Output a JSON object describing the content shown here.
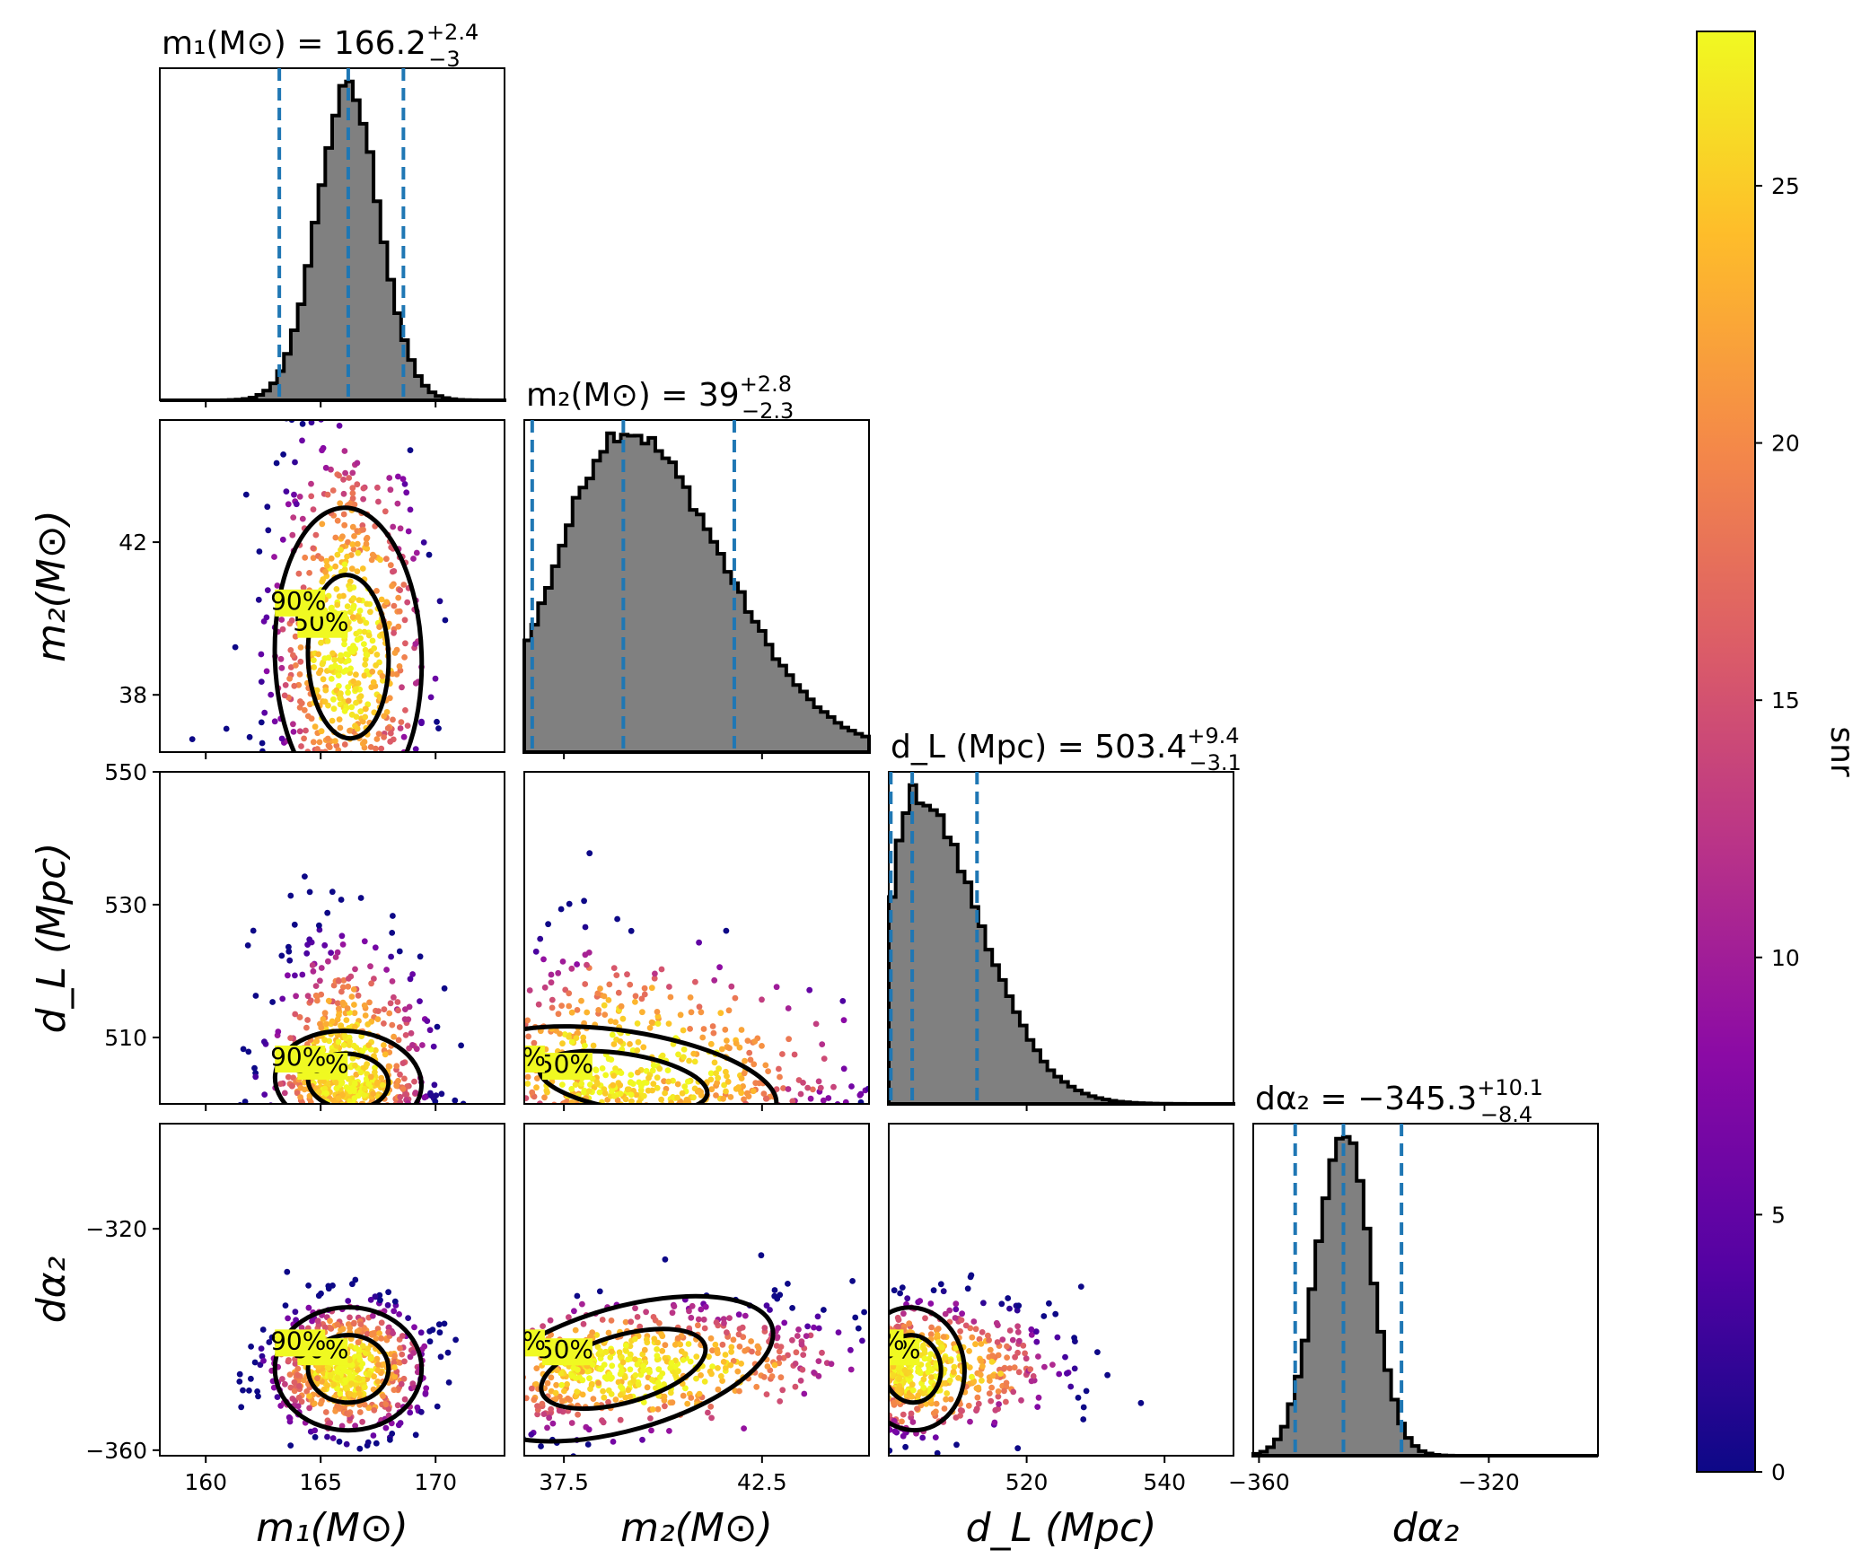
{
  "chart_data": {
    "type": "scatter",
    "subtype": "corner plot (1D histograms on diagonal, 2D posterior scatter colored by snr off-diagonal)",
    "parameters": [
      {
        "key": "m1",
        "label": "m₁(M⊙)",
        "range": [
          158,
          173
        ],
        "ticks": [
          160,
          165,
          170
        ],
        "median": 166.2,
        "plus": "+2.4",
        "minus": "−3",
        "title_prefix": "m₁(M⊙) = ",
        "title_value": "166.2",
        "quantiles": [
          163.2,
          166.2,
          168.6
        ],
        "sigma": 1.35,
        "skew": 0
      },
      {
        "key": "m2",
        "label": "m₂(M⊙)",
        "range": [
          36.5,
          45.2
        ],
        "ticks": [
          37.5,
          42.5
        ],
        "median": 39,
        "plus": "+2.8",
        "minus": "−2.3",
        "title_prefix": "m₂(M⊙) = ",
        "title_value": "39",
        "quantiles": [
          36.7,
          39.0,
          41.8
        ],
        "sigma": 1.65,
        "skew": 0.5
      },
      {
        "key": "dL",
        "label": "d_L (Mpc)",
        "range": [
          500,
          550
        ],
        "ticks": [
          520,
          540
        ],
        "median": 503.4,
        "plus": "+9.4",
        "minus": "−3.1",
        "title_prefix": "d_L (Mpc) = ",
        "title_value": "503.4",
        "quantiles": [
          500.3,
          503.4,
          512.8
        ],
        "sigma": 3.2,
        "skew": 2.0
      },
      {
        "key": "da2",
        "label": "dα₂",
        "range": [
          -361,
          -301
        ],
        "ticks": [
          -360,
          -320
        ],
        "median": -345.3,
        "plus": "+10.1",
        "minus": "−8.4",
        "title_prefix": "dα₂ = ",
        "title_value": "−345.3",
        "quantiles": [
          -353.7,
          -345.3,
          -335.2
        ],
        "sigma": 4.7,
        "skew": 0
      }
    ],
    "offdiag_ticks": {
      "m2": [
        42,
        38
      ],
      "dL": [
        550,
        530,
        510
      ],
      "da2": [
        -320,
        -360
      ]
    },
    "contour_levels": [
      "50%",
      "90%"
    ],
    "colorbar": {
      "label": "snr",
      "range": [
        0,
        28
      ],
      "ticks": [
        0,
        5,
        10,
        15,
        20,
        25
      ],
      "colormap": "plasma"
    },
    "colors": {
      "histogram_fill": "#808080",
      "histogram_edge": "#000000",
      "quantile_lines": "#1f77b4",
      "contour": "#000000"
    }
  }
}
